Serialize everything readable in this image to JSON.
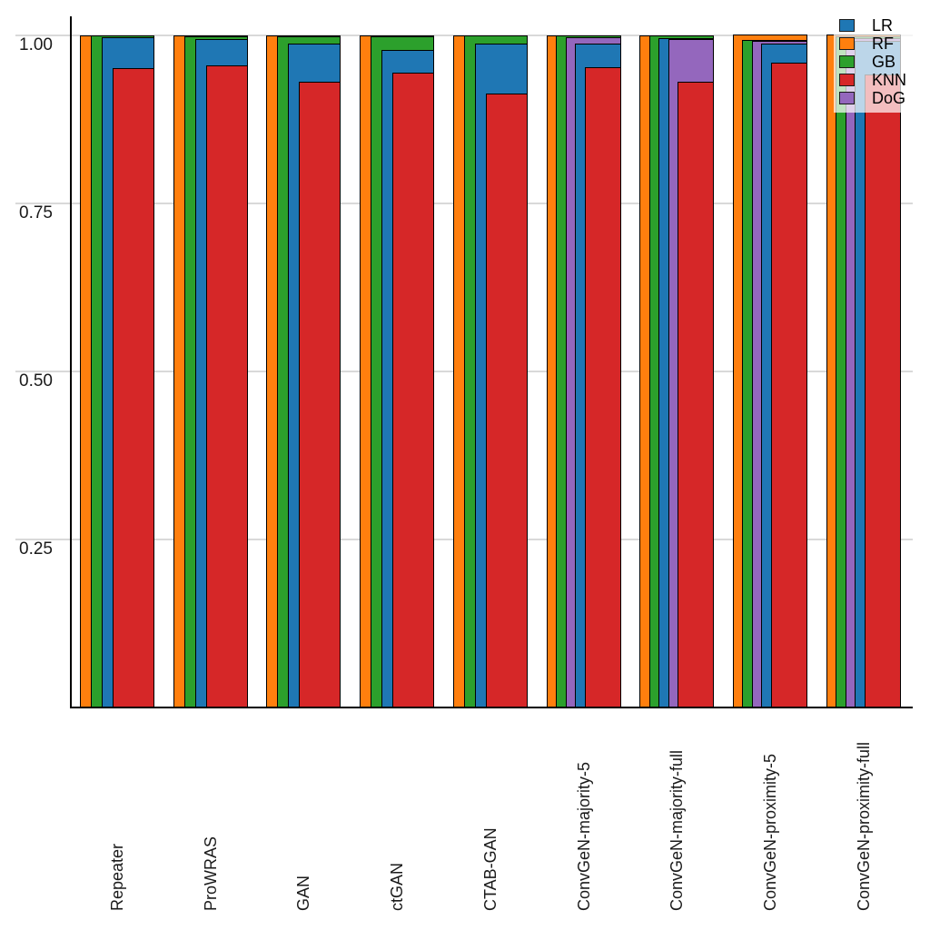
{
  "chart_data": {
    "type": "bar",
    "variant": "overlaid-nested-bars-right-aligned",
    "title": "",
    "xlabel": "",
    "ylabel": "",
    "categories": [
      "Repeater",
      "ProWRAS",
      "GAN",
      "ctGAN",
      "CTAB-GAN",
      "ConvGeN-majority-5",
      "ConvGeN-majority-full",
      "ConvGeN-proximity-5",
      "ConvGeN-proximity-full"
    ],
    "series": [
      {
        "name": "LR",
        "color": "#1f77b4",
        "values": [
          0.996,
          0.993,
          0.986,
          0.977,
          0.986,
          0.986,
          0.994,
          0.986,
          0.99
        ]
      },
      {
        "name": "RF",
        "color": "#ff7f0e",
        "values": [
          0.999,
          0.999,
          0.999,
          0.999,
          0.998,
          0.999,
          0.998,
          1.0,
          1.0
        ]
      },
      {
        "name": "GB",
        "color": "#2ca02c",
        "values": [
          0.998,
          0.997,
          0.997,
          0.997,
          0.998,
          0.998,
          0.998,
          0.992,
          0.997
        ]
      },
      {
        "name": "KNN",
        "color": "#d62728",
        "values": [
          0.95,
          0.954,
          0.93,
          0.943,
          0.912,
          0.952,
          0.93,
          0.958,
          0.94
        ]
      },
      {
        "name": "DoG",
        "color": "#9467bd",
        "values": [
          null,
          null,
          null,
          null,
          null,
          0.996,
          0.993,
          0.99,
          0.995
        ]
      }
    ],
    "yticks": [
      {
        "value": 1.0,
        "label": "1.00"
      },
      {
        "value": 0.75,
        "label": "0.75"
      },
      {
        "value": 0.5,
        "label": "0.50"
      },
      {
        "value": 0.25,
        "label": "0.25"
      }
    ],
    "ylim": [
      0,
      1.027
    ],
    "grid": true,
    "legend_position": "top-right",
    "legend_items": [
      "LR",
      "RF",
      "GB",
      "KNN",
      "DoG"
    ],
    "colors": {
      "bar_outline": "#000000",
      "gridline": "#d9d9d9",
      "axis_line": "#000000",
      "tick_text": "#1a1a1a"
    }
  }
}
